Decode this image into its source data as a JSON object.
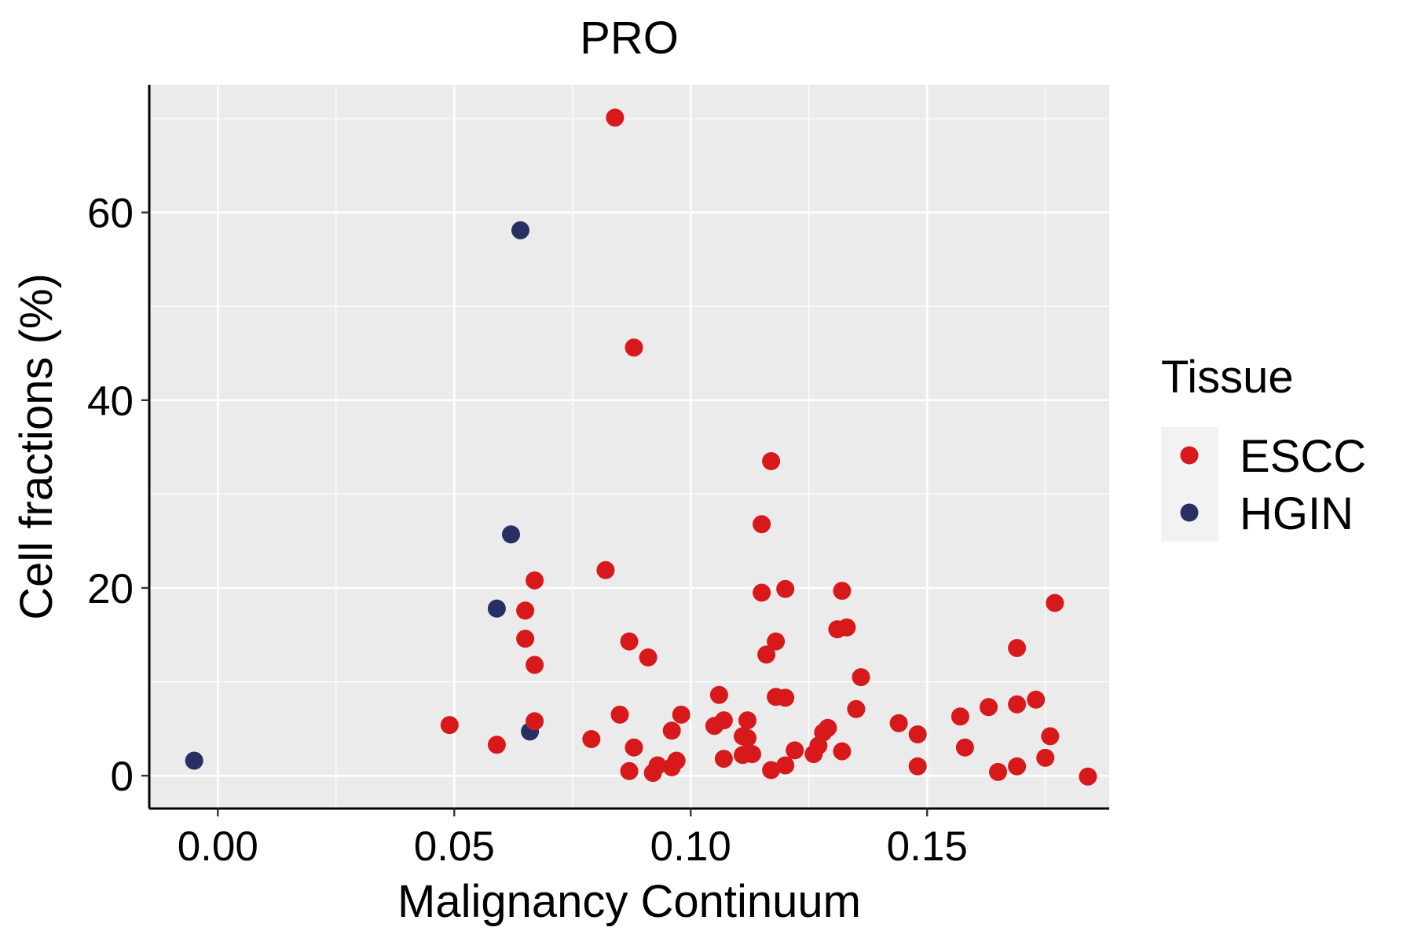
{
  "chart_data": {
    "type": "scatter",
    "title": "PRO",
    "xlabel": "Malignancy Continuum",
    "ylabel": "Cell fractions (%)",
    "xlim": [
      -0.0145,
      0.1885
    ],
    "ylim": [
      -3.5,
      73.6
    ],
    "x_ticks": [
      0.0,
      0.05,
      0.1,
      0.15
    ],
    "x_tick_labels": [
      "0.00",
      "0.05",
      "0.10",
      "0.15"
    ],
    "y_ticks": [
      0,
      20,
      40,
      60
    ],
    "y_tick_labels": [
      "0",
      "20",
      "40",
      "60"
    ],
    "grid": true,
    "legend": {
      "title": "Tissue",
      "position": "right",
      "entries": [
        {
          "name": "ESCC",
          "color": "#d7191c"
        },
        {
          "name": "HGIN",
          "color": "#283063"
        }
      ]
    },
    "series": [
      {
        "name": "HGIN",
        "color": "#283063",
        "points": [
          [
            -0.005,
            1.6
          ],
          [
            0.059,
            17.8
          ],
          [
            0.062,
            25.7
          ],
          [
            0.064,
            58.1
          ],
          [
            0.066,
            4.7
          ]
        ]
      },
      {
        "name": "ESCC",
        "color": "#d7191c",
        "points": [
          [
            0.084,
            70.1
          ],
          [
            0.088,
            45.6
          ],
          [
            0.117,
            33.5
          ],
          [
            0.115,
            26.8
          ],
          [
            0.082,
            21.9
          ],
          [
            0.067,
            20.8
          ],
          [
            0.12,
            19.9
          ],
          [
            0.132,
            19.7
          ],
          [
            0.115,
            19.5
          ],
          [
            0.177,
            18.4
          ],
          [
            0.065,
            17.6
          ],
          [
            0.133,
            15.8
          ],
          [
            0.131,
            15.6
          ],
          [
            0.065,
            14.6
          ],
          [
            0.087,
            14.3
          ],
          [
            0.118,
            14.3
          ],
          [
            0.169,
            13.6
          ],
          [
            0.116,
            12.9
          ],
          [
            0.091,
            12.6
          ],
          [
            0.067,
            11.8
          ],
          [
            0.136,
            10.5
          ],
          [
            0.106,
            8.6
          ],
          [
            0.118,
            8.4
          ],
          [
            0.12,
            8.3
          ],
          [
            0.173,
            8.1
          ],
          [
            0.169,
            7.6
          ],
          [
            0.163,
            7.3
          ],
          [
            0.135,
            7.1
          ],
          [
            0.098,
            6.5
          ],
          [
            0.085,
            6.5
          ],
          [
            0.157,
            6.3
          ],
          [
            0.112,
            5.9
          ],
          [
            0.107,
            5.9
          ],
          [
            0.067,
            5.8
          ],
          [
            0.144,
            5.6
          ],
          [
            0.049,
            5.4
          ],
          [
            0.105,
            5.3
          ],
          [
            0.129,
            5.1
          ],
          [
            0.096,
            4.8
          ],
          [
            0.128,
            4.6
          ],
          [
            0.148,
            4.4
          ],
          [
            0.176,
            4.2
          ],
          [
            0.111,
            4.2
          ],
          [
            0.112,
            4.0
          ],
          [
            0.079,
            3.9
          ],
          [
            0.059,
            3.3
          ],
          [
            0.127,
            3.2
          ],
          [
            0.158,
            3.0
          ],
          [
            0.088,
            3.0
          ],
          [
            0.122,
            2.7
          ],
          [
            0.132,
            2.6
          ],
          [
            0.126,
            2.3
          ],
          [
            0.113,
            2.3
          ],
          [
            0.111,
            2.2
          ],
          [
            0.175,
            1.9
          ],
          [
            0.107,
            1.8
          ],
          [
            0.097,
            1.6
          ],
          [
            0.093,
            1.1
          ],
          [
            0.12,
            1.1
          ],
          [
            0.148,
            1.0
          ],
          [
            0.169,
            1.0
          ],
          [
            0.096,
            0.9
          ],
          [
            0.117,
            0.6
          ],
          [
            0.087,
            0.5
          ],
          [
            0.092,
            0.3
          ],
          [
            0.165,
            0.4
          ],
          [
            0.184,
            -0.1
          ]
        ]
      }
    ]
  }
}
